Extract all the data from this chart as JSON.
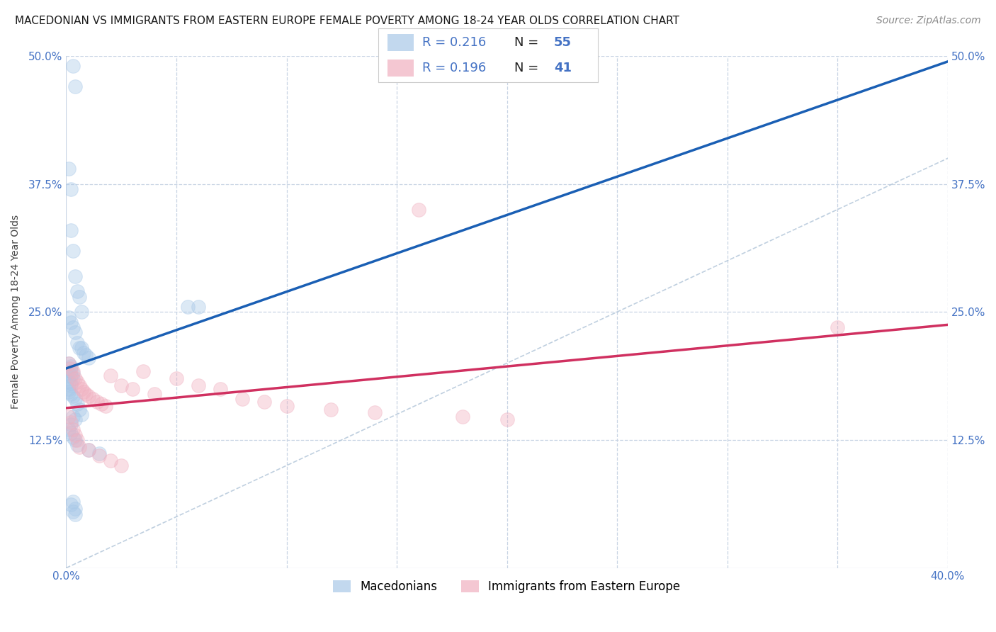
{
  "title": "MACEDONIAN VS IMMIGRANTS FROM EASTERN EUROPE FEMALE POVERTY AMONG 18-24 YEAR OLDS CORRELATION CHART",
  "source": "Source: ZipAtlas.com",
  "ylabel": "Female Poverty Among 18-24 Year Olds",
  "xlim": [
    0,
    0.4
  ],
  "ylim": [
    0,
    0.5
  ],
  "xtick_positions": [
    0.0,
    0.05,
    0.1,
    0.15,
    0.2,
    0.25,
    0.3,
    0.35,
    0.4
  ],
  "xticklabels": [
    "0.0%",
    "",
    "",
    "",
    "",
    "",
    "",
    "",
    "40.0%"
  ],
  "ytick_positions": [
    0.0,
    0.125,
    0.25,
    0.375,
    0.5
  ],
  "yticklabels_left": [
    "",
    "12.5%",
    "25.0%",
    "37.5%",
    "50.0%"
  ],
  "yticklabels_right": [
    "",
    "12.5%",
    "25.0%",
    "37.5%",
    "50.0%"
  ],
  "legend_r1": "0.216",
  "legend_n1": "55",
  "legend_r2": "0.196",
  "legend_n2": "41",
  "color_blue": "#a8c8e8",
  "color_pink": "#f0b0c0",
  "color_blue_text": "#4472c4",
  "color_trendline_blue": "#1a5fb4",
  "color_trendline_pink": "#d03060",
  "color_diagonal": "#b0c4d8",
  "label_macedonians": "Macedonians",
  "label_immigrants": "Immigrants from Eastern Europe",
  "blue_x": [
    0.003,
    0.004,
    0.001,
    0.002,
    0.002,
    0.003,
    0.004,
    0.005,
    0.006,
    0.007,
    0.001,
    0.002,
    0.003,
    0.004,
    0.005,
    0.006,
    0.007,
    0.008,
    0.009,
    0.01,
    0.001,
    0.002,
    0.001,
    0.002,
    0.003,
    0.002,
    0.003,
    0.001,
    0.002,
    0.002,
    0.001,
    0.001,
    0.002,
    0.003,
    0.004,
    0.005,
    0.006,
    0.007,
    0.003,
    0.004,
    0.002,
    0.001,
    0.002,
    0.003,
    0.004,
    0.005,
    0.01,
    0.015,
    0.003,
    0.002,
    0.004,
    0.003,
    0.004,
    0.055,
    0.06
  ],
  "blue_y": [
    0.49,
    0.47,
    0.39,
    0.37,
    0.33,
    0.31,
    0.285,
    0.27,
    0.265,
    0.25,
    0.245,
    0.24,
    0.235,
    0.23,
    0.22,
    0.215,
    0.215,
    0.21,
    0.208,
    0.205,
    0.2,
    0.197,
    0.195,
    0.192,
    0.19,
    0.188,
    0.185,
    0.182,
    0.18,
    0.178,
    0.175,
    0.172,
    0.17,
    0.168,
    0.165,
    0.16,
    0.155,
    0.15,
    0.148,
    0.145,
    0.14,
    0.135,
    0.132,
    0.128,
    0.125,
    0.12,
    0.115,
    0.112,
    0.065,
    0.062,
    0.058,
    0.055,
    0.052,
    0.255,
    0.255
  ],
  "pink_x": [
    0.001,
    0.002,
    0.003,
    0.004,
    0.005,
    0.006,
    0.007,
    0.008,
    0.009,
    0.01,
    0.012,
    0.014,
    0.016,
    0.018,
    0.02,
    0.025,
    0.03,
    0.035,
    0.04,
    0.05,
    0.06,
    0.07,
    0.08,
    0.09,
    0.1,
    0.12,
    0.14,
    0.16,
    0.18,
    0.2,
    0.001,
    0.002,
    0.003,
    0.004,
    0.005,
    0.006,
    0.01,
    0.015,
    0.02,
    0.025,
    0.35
  ],
  "pink_y": [
    0.2,
    0.195,
    0.192,
    0.185,
    0.182,
    0.178,
    0.175,
    0.172,
    0.17,
    0.168,
    0.165,
    0.162,
    0.16,
    0.158,
    0.188,
    0.178,
    0.175,
    0.192,
    0.17,
    0.185,
    0.178,
    0.175,
    0.165,
    0.162,
    0.158,
    0.155,
    0.152,
    0.35,
    0.148,
    0.145,
    0.148,
    0.142,
    0.135,
    0.13,
    0.125,
    0.118,
    0.115,
    0.11,
    0.105,
    0.1,
    0.235
  ],
  "marker_size": 200,
  "alpha": 0.4,
  "title_fontsize": 11,
  "axis_label_fontsize": 10,
  "tick_fontsize": 11,
  "source_fontsize": 10,
  "background_color": "#ffffff",
  "grid_color": "#c8d4e4",
  "fig_width": 14.06,
  "fig_height": 8.92
}
